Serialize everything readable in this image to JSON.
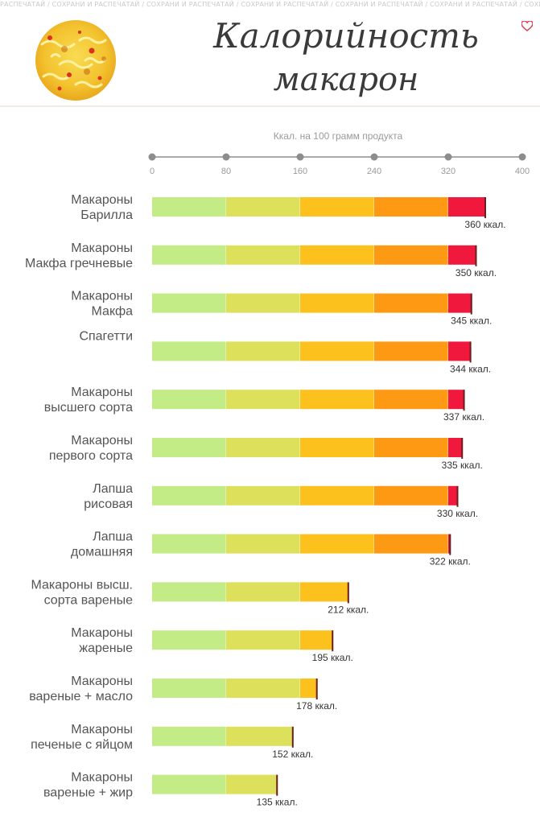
{
  "watermark": "РАСПЕЧАТАЙ / СОХРАНИ И РАСПЕЧАТАЙ / СОХРАНИ И РАСПЕЧАТАЙ / СОХРАНИ И РАСПЕЧАТАЙ / СОХРАНИ И РАСПЕЧАТАЙ / СОХРАНИ И РАСПЕЧАТАЙ / СОХРАНИ И РАС",
  "header": {
    "title_line1": "Калорийность",
    "title_line2": "макарон"
  },
  "colors": {
    "segments": [
      "#c3ec86",
      "#dde05b",
      "#fcc11d",
      "#fd9912",
      "#f0183c"
    ],
    "marker": "#6b1d1d",
    "axis": "#8d8d8d",
    "title": "#3a3a3a"
  },
  "chart_data": {
    "type": "bar",
    "orientation": "horizontal",
    "title": "Калорийность макарон",
    "axis_title": "Ккал. на 100 грамм продукта",
    "xlim": [
      0,
      400
    ],
    "ticks": [
      0,
      80,
      160,
      240,
      320,
      400
    ],
    "tick_labels": [
      "0",
      "80",
      "160",
      "240",
      "320",
      "400"
    ],
    "axis_position": "top",
    "grid": false,
    "categories": [
      [
        "Макароны",
        "Барилла"
      ],
      [
        "Макароны",
        "Макфа гречневые"
      ],
      [
        "Макароны",
        "Макфа"
      ],
      [
        "Спагетти"
      ],
      [
        "Макароны",
        "высшего сорта"
      ],
      [
        "Макароны",
        "первого сорта"
      ],
      [
        "Лапша",
        "рисовая"
      ],
      [
        "Лапша",
        "домашняя"
      ],
      [
        "Макароны высш.",
        "сорта вареные"
      ],
      [
        "Макароны",
        "жареные"
      ],
      [
        "Макароны",
        "вареные + масло"
      ],
      [
        "Макароны",
        "печеные с яйцом"
      ],
      [
        "Макароны",
        "вареные + жир"
      ]
    ],
    "values": [
      360,
      350,
      345,
      344,
      337,
      335,
      330,
      322,
      212,
      195,
      178,
      152,
      135
    ],
    "value_labels": [
      "360 ккал.",
      "350 ккал.",
      "345 ккал.",
      "344 ккал.",
      "337 ккал.",
      "335 ккал.",
      "330 ккал.",
      "322 ккал.",
      "212 ккал.",
      "195 ккал.",
      "178 ккал.",
      "152 ккал.",
      "135 ккал."
    ]
  }
}
